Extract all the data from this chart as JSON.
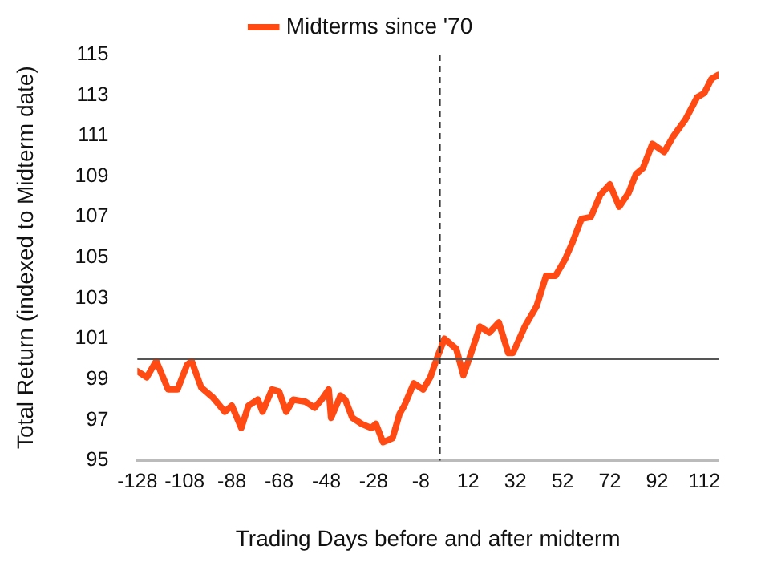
{
  "chart_data": {
    "type": "line",
    "xlabel": "Trading Days before and after midterm",
    "ylabel": "Total Return (indexed to Midterm date)",
    "xlim": [
      -128,
      118
    ],
    "xticks": [
      -128,
      -108,
      -88,
      -68,
      -48,
      -28,
      -8,
      12,
      32,
      52,
      72,
      92,
      112
    ],
    "ylim": [
      95,
      115
    ],
    "yticks": [
      95,
      97,
      99,
      101,
      103,
      105,
      107,
      109,
      111,
      113,
      115
    ],
    "grid": false,
    "legend": "top",
    "marker": "none",
    "line_style": "solid",
    "ref_lines": [
      {
        "axis": "y",
        "value": 100,
        "color": "#555555",
        "line_style": "solid"
      },
      {
        "axis": "x",
        "value": 0,
        "color": "#333333",
        "line_style": "dashed"
      }
    ],
    "series": [
      {
        "name": "Midterms since '70",
        "color": "#ff4a14",
        "x": [
          -128,
          -124,
          -120,
          -115,
          -111,
          -107,
          -105,
          -101,
          -96,
          -91,
          -88,
          -84,
          -81,
          -77,
          -75,
          -71,
          -68,
          -65,
          -62,
          -57,
          -53,
          -50,
          -47,
          -46,
          -42,
          -40,
          -37,
          -33,
          -29,
          -27,
          -24,
          -20,
          -17,
          -15,
          -11,
          -7,
          -4,
          -1,
          2,
          7,
          10,
          13,
          17,
          21,
          25,
          29,
          31,
          36,
          41,
          45,
          49,
          53,
          56,
          60,
          64,
          68,
          72,
          76,
          80,
          83,
          86,
          90,
          95,
          99,
          104,
          109,
          112,
          115,
          118
        ],
        "values": [
          99.4,
          99.1,
          99.9,
          98.5,
          98.5,
          99.7,
          99.9,
          98.6,
          98.1,
          97.4,
          97.7,
          96.6,
          97.7,
          98.0,
          97.4,
          98.5,
          98.4,
          97.4,
          98.0,
          97.9,
          97.6,
          98.0,
          98.5,
          97.1,
          98.2,
          98.0,
          97.1,
          96.8,
          96.6,
          96.8,
          95.9,
          96.1,
          97.3,
          97.7,
          98.8,
          98.5,
          99.1,
          100.1,
          101.0,
          100.5,
          99.2,
          100.2,
          101.6,
          101.3,
          101.8,
          100.3,
          100.3,
          101.6,
          102.6,
          104.1,
          104.1,
          104.9,
          105.7,
          106.9,
          107.0,
          108.1,
          108.6,
          107.5,
          108.2,
          109.1,
          109.4,
          110.6,
          110.2,
          111.0,
          111.8,
          112.9,
          113.1,
          113.8,
          114.0
        ]
      }
    ]
  }
}
